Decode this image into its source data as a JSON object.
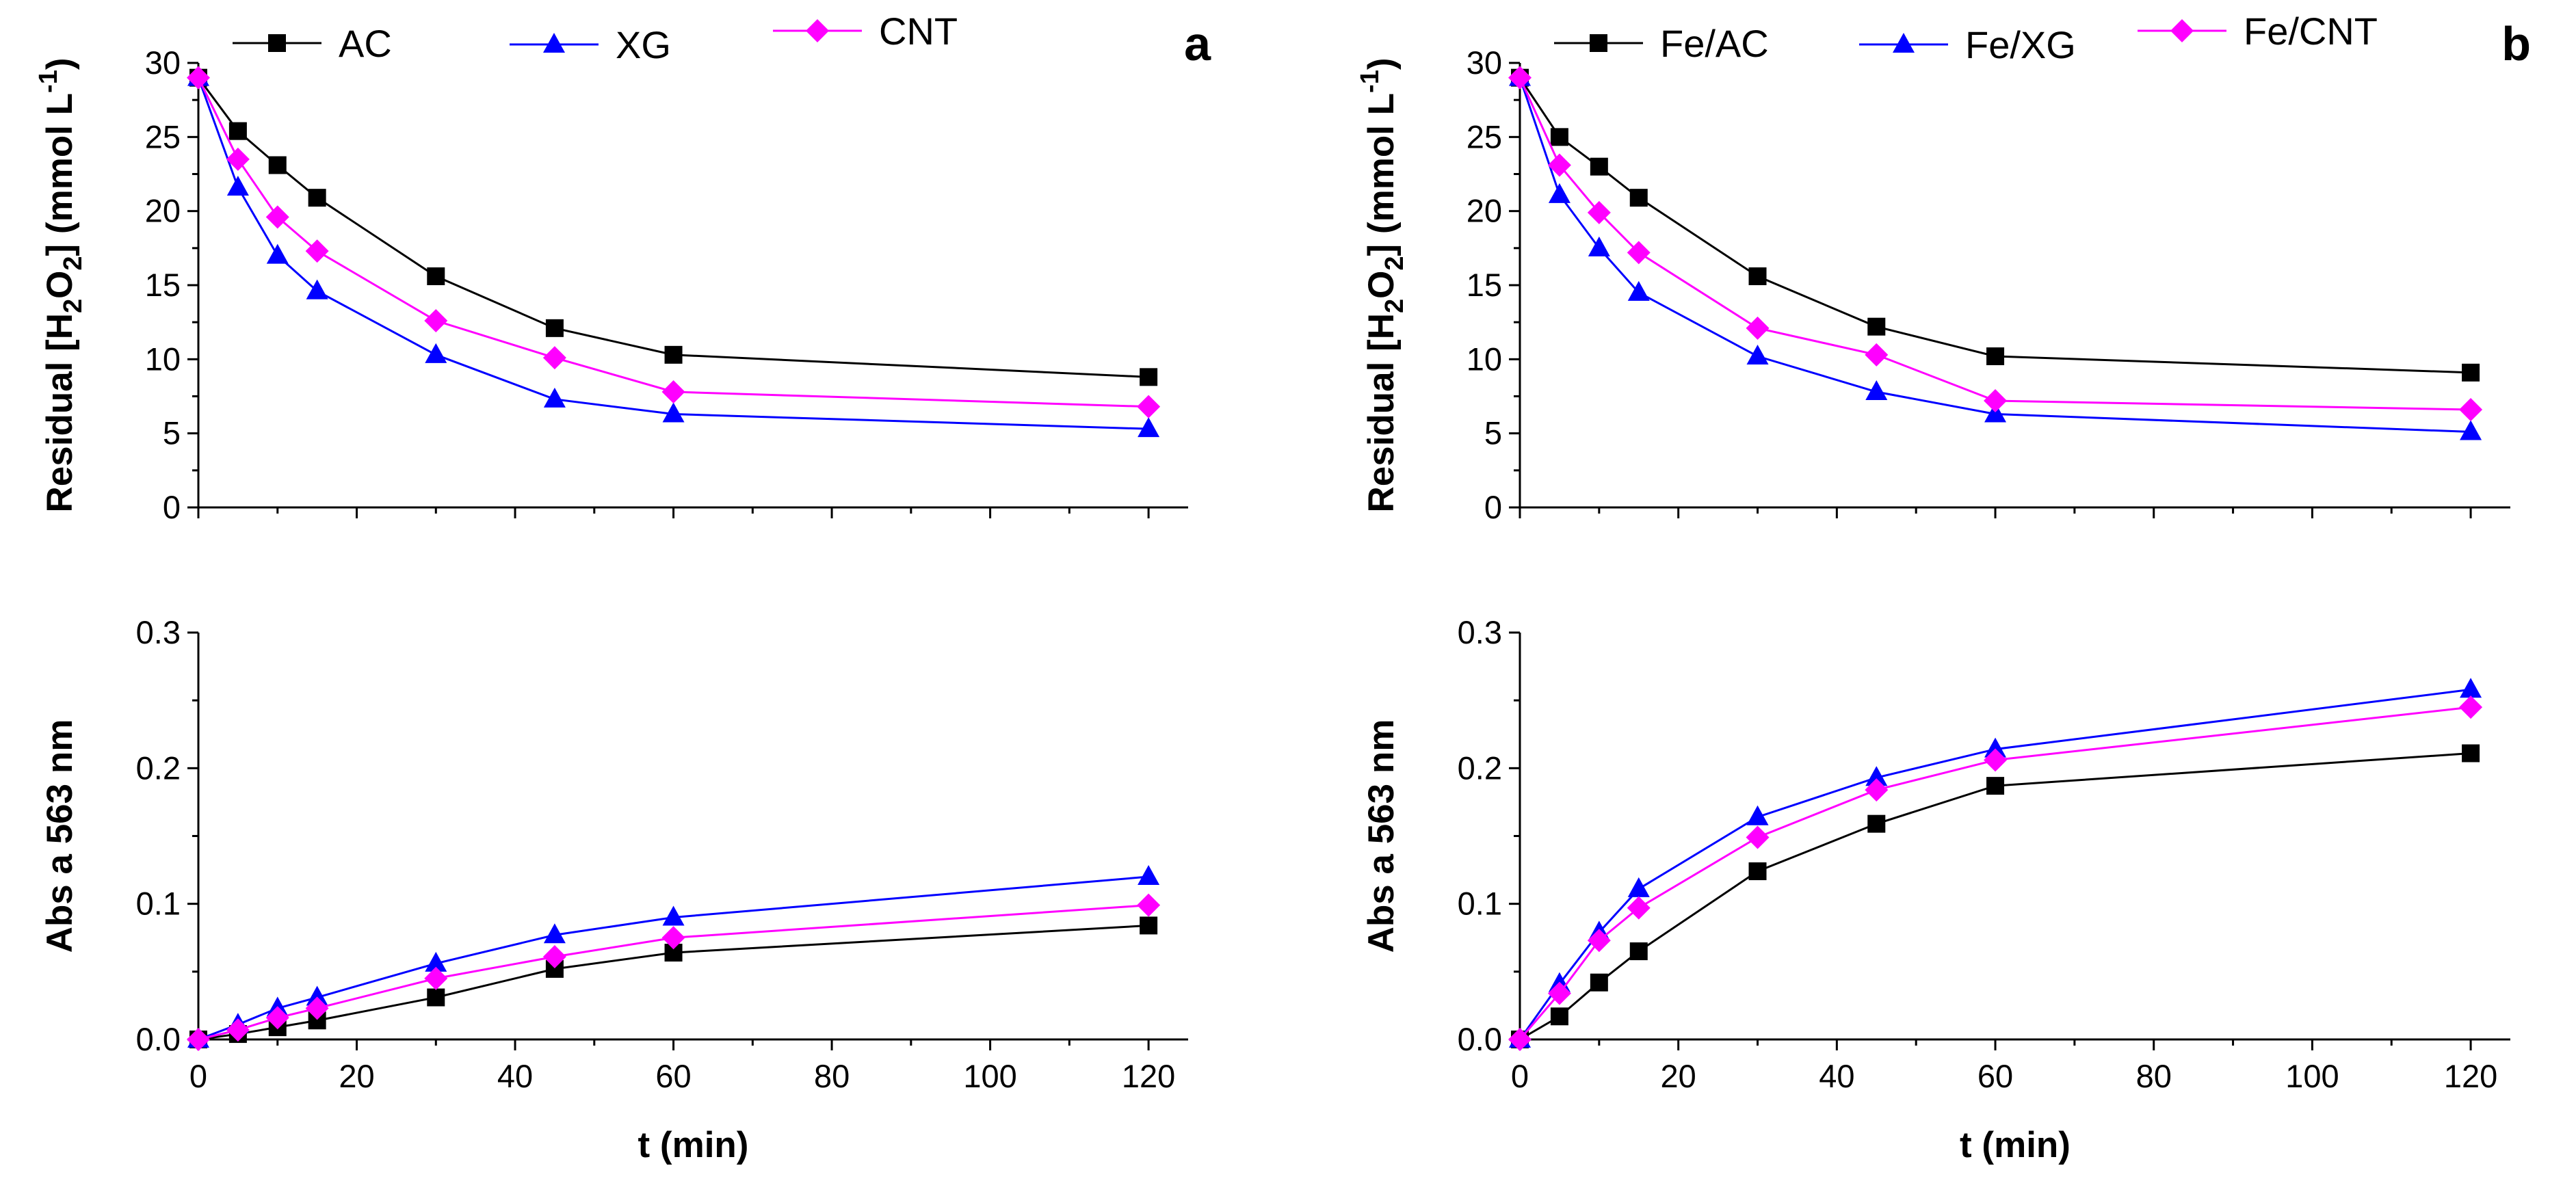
{
  "chart_data": [
    {
      "type": "line",
      "panel_label": "a",
      "title": "",
      "legend": [
        "AC",
        "XG",
        "CNT"
      ],
      "xlabel": "t (min)",
      "x": [
        0,
        5,
        10,
        15,
        30,
        45,
        60,
        120
      ],
      "xlim": [
        0,
        125
      ],
      "xticks": [
        "0",
        "20",
        "40",
        "60",
        "80",
        "100",
        "120"
      ],
      "top": {
        "ylabel": "Residual [H2O2] (mmol L-1)",
        "ylim": [
          0,
          30
        ],
        "yticks": [
          "0",
          "5",
          "10",
          "15",
          "20",
          "25",
          "30"
        ],
        "series": [
          {
            "name": "AC",
            "values": [
              29.0,
              25.4,
              23.1,
              20.9,
              15.6,
              12.1,
              10.3,
              8.8
            ]
          },
          {
            "name": "XG",
            "values": [
              29.0,
              21.6,
              17.0,
              14.6,
              10.3,
              7.3,
              6.3,
              5.3
            ]
          },
          {
            "name": "CNT",
            "values": [
              29.0,
              23.5,
              19.6,
              17.3,
              12.6,
              10.1,
              7.8,
              6.8
            ]
          }
        ]
      },
      "bottom": {
        "ylabel": "Abs a 563 nm",
        "ylim": [
          0,
          0.3
        ],
        "yticks": [
          "0.0",
          "0.1",
          "0.2",
          "0.3"
        ],
        "series": [
          {
            "name": "AC",
            "values": [
              0.0,
              0.004,
              0.009,
              0.014,
              0.031,
              0.052,
              0.064,
              0.084
            ]
          },
          {
            "name": "XG",
            "values": [
              0.0,
              0.011,
              0.023,
              0.031,
              0.056,
              0.077,
              0.09,
              0.12
            ]
          },
          {
            "name": "CNT",
            "values": [
              0.0,
              0.007,
              0.016,
              0.023,
              0.045,
              0.061,
              0.075,
              0.099
            ]
          }
        ]
      }
    },
    {
      "type": "line",
      "panel_label": "b",
      "title": "",
      "legend": [
        "Fe/AC",
        "Fe/XG",
        "Fe/CNT"
      ],
      "xlabel": "t (min)",
      "x": [
        0,
        5,
        10,
        15,
        30,
        45,
        60,
        120
      ],
      "xlim": [
        0,
        125
      ],
      "xticks": [
        "0",
        "20",
        "40",
        "60",
        "80",
        "100",
        "120"
      ],
      "top": {
        "ylabel": "Residual [H2O2] (mmol L-1)",
        "ylim": [
          0,
          30
        ],
        "yticks": [
          "0",
          "5",
          "10",
          "15",
          "20",
          "25",
          "30"
        ],
        "series": [
          {
            "name": "Fe/AC",
            "values": [
              29.0,
              25.0,
              23.0,
              20.9,
              15.6,
              12.2,
              10.2,
              9.1
            ]
          },
          {
            "name": "Fe/XG",
            "values": [
              29.0,
              21.1,
              17.5,
              14.5,
              10.2,
              7.8,
              6.3,
              5.1
            ]
          },
          {
            "name": "Fe/CNT",
            "values": [
              29.0,
              23.1,
              19.9,
              17.2,
              12.1,
              10.3,
              7.2,
              6.6
            ]
          }
        ]
      },
      "bottom": {
        "ylabel": "Abs a 563 nm",
        "ylim": [
          0,
          0.3
        ],
        "yticks": [
          "0.0",
          "0.1",
          "0.2",
          "0.3"
        ],
        "series": [
          {
            "name": "Fe/AC",
            "values": [
              0.0,
              0.017,
              0.042,
              0.065,
              0.124,
              0.159,
              0.187,
              0.211
            ]
          },
          {
            "name": "Fe/XG",
            "values": [
              0.0,
              0.041,
              0.079,
              0.111,
              0.164,
              0.193,
              0.214,
              0.258
            ]
          },
          {
            "name": "Fe/CNT",
            "values": [
              0.0,
              0.034,
              0.073,
              0.097,
              0.149,
              0.184,
              0.206,
              0.245
            ]
          }
        ]
      }
    }
  ],
  "series_colors": [
    "#000000",
    "#0000ff",
    "#ff00ff"
  ],
  "series_markers": [
    "square",
    "triangle",
    "diamond"
  ]
}
